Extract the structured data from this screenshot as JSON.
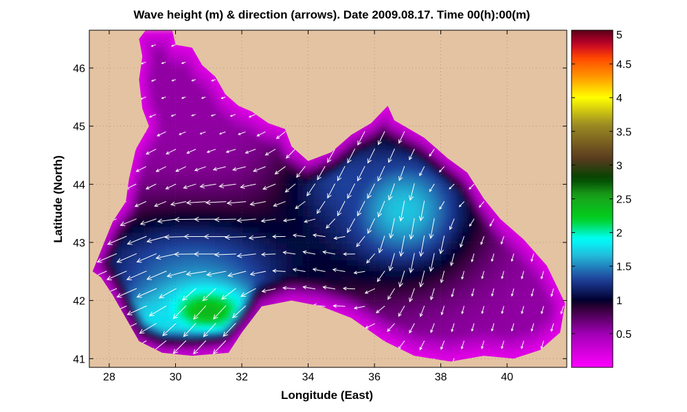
{
  "chart_data": {
    "type": "heatmap",
    "title": "Wave height (m) & direction (arrows). Date 2009.08.17. Time 00(h):00(m)",
    "xlabel": "Longitude (East)",
    "ylabel": "Latitude (North)",
    "xlim": [
      27.4,
      41.8
    ],
    "ylim": [
      40.85,
      46.65
    ],
    "xticks": [
      28,
      30,
      32,
      34,
      36,
      38,
      40
    ],
    "yticks": [
      41,
      42,
      43,
      44,
      45,
      46
    ],
    "grid": true,
    "land_color": "#e4c3a2",
    "colorbar": {
      "range": [
        0,
        5
      ],
      "ticks": [
        0.5,
        1,
        1.5,
        2,
        2.5,
        3,
        3.5,
        4,
        4.5,
        5
      ],
      "stops": [
        {
          "v": 0.0,
          "color": "#ff00ff"
        },
        {
          "v": 0.5,
          "color": "#a000b4"
        },
        {
          "v": 0.9,
          "color": "#2a0030"
        },
        {
          "v": 1.0,
          "color": "#000030"
        },
        {
          "v": 1.3,
          "color": "#1f3f9a"
        },
        {
          "v": 1.65,
          "color": "#23b8d8"
        },
        {
          "v": 1.9,
          "color": "#00ffff"
        },
        {
          "v": 2.2,
          "color": "#00d01e"
        },
        {
          "v": 2.55,
          "color": "#1aa01a"
        },
        {
          "v": 2.8,
          "color": "#004400"
        },
        {
          "v": 3.1,
          "color": "#5a3a1e"
        },
        {
          "v": 3.6,
          "color": "#9c8b23"
        },
        {
          "v": 4.0,
          "color": "#ffff00"
        },
        {
          "v": 4.3,
          "color": "#ff9a00"
        },
        {
          "v": 4.6,
          "color": "#ff4400"
        },
        {
          "v": 4.8,
          "color": "#c0002a"
        },
        {
          "v": 5.0,
          "color": "#5a0018"
        }
      ]
    },
    "sea_outline": [
      [
        29.1,
        46.65
      ],
      [
        29.9,
        46.65
      ],
      [
        30.0,
        46.4
      ],
      [
        30.5,
        46.35
      ],
      [
        30.8,
        46.05
      ],
      [
        31.2,
        45.85
      ],
      [
        31.5,
        45.55
      ],
      [
        31.9,
        45.35
      ],
      [
        32.3,
        45.25
      ],
      [
        32.8,
        45.05
      ],
      [
        33.3,
        44.95
      ],
      [
        33.5,
        44.65
      ],
      [
        34.0,
        44.4
      ],
      [
        34.7,
        44.55
      ],
      [
        35.3,
        44.85
      ],
      [
        35.9,
        45.05
      ],
      [
        36.4,
        45.35
      ],
      [
        36.6,
        45.1
      ],
      [
        37.5,
        44.8
      ],
      [
        38.2,
        44.45
      ],
      [
        38.8,
        44.2
      ],
      [
        39.3,
        43.75
      ],
      [
        39.8,
        43.4
      ],
      [
        40.5,
        43.05
      ],
      [
        41.2,
        42.6
      ],
      [
        41.75,
        41.95
      ],
      [
        41.6,
        41.45
      ],
      [
        41.0,
        41.15
      ],
      [
        40.2,
        41.0
      ],
      [
        39.3,
        41.05
      ],
      [
        38.3,
        40.95
      ],
      [
        37.2,
        41.05
      ],
      [
        36.3,
        41.3
      ],
      [
        35.3,
        41.7
      ],
      [
        34.4,
        41.9
      ],
      [
        33.5,
        42.0
      ],
      [
        32.6,
        41.9
      ],
      [
        32.0,
        41.45
      ],
      [
        31.6,
        41.1
      ],
      [
        30.5,
        41.05
      ],
      [
        29.6,
        41.1
      ],
      [
        28.9,
        41.3
      ],
      [
        28.5,
        41.7
      ],
      [
        28.1,
        42.1
      ],
      [
        27.75,
        42.4
      ],
      [
        27.5,
        42.5
      ],
      [
        27.85,
        43.0
      ],
      [
        28.1,
        43.35
      ],
      [
        28.5,
        43.7
      ],
      [
        28.6,
        44.1
      ],
      [
        28.8,
        44.6
      ],
      [
        29.2,
        45.0
      ],
      [
        29.0,
        45.3
      ],
      [
        28.9,
        45.8
      ],
      [
        29.0,
        46.2
      ],
      [
        28.9,
        46.5
      ]
    ],
    "wave_field": [
      {
        "lon": 30.4,
        "lat": 44.9,
        "height": 0.05,
        "sigma_lon": 1.6,
        "sigma_lat": 1.5
      },
      {
        "lon": 30.5,
        "lat": 42.6,
        "height": 1.4,
        "sigma_lon": 2.8,
        "sigma_lat": 0.7
      },
      {
        "lon": 31.0,
        "lat": 41.8,
        "height": 2.4,
        "sigma_lon": 1.1,
        "sigma_lat": 0.35
      },
      {
        "lon": 29.3,
        "lat": 41.6,
        "height": 1.8,
        "sigma_lon": 1.0,
        "sigma_lat": 0.4
      },
      {
        "lon": 36.9,
        "lat": 43.55,
        "height": 1.7,
        "sigma_lon": 1.5,
        "sigma_lat": 0.8
      },
      {
        "lon": 35.2,
        "lat": 44.0,
        "height": 1.3,
        "sigma_lon": 1.4,
        "sigma_lat": 0.6
      },
      {
        "lon": 34.5,
        "lat": 42.9,
        "height": 1.0,
        "sigma_lon": 1.4,
        "sigma_lat": 0.5
      },
      {
        "lon": 29.3,
        "lat": 43.9,
        "height": 0.55,
        "sigma_lon": 1.8,
        "sigma_lat": 0.9
      },
      {
        "lon": 40.0,
        "lat": 42.0,
        "height": 0.5,
        "sigma_lon": 1.6,
        "sigma_lat": 0.9
      }
    ],
    "arrow_field": {
      "grid_step_lon": 0.6,
      "grid_step_lat": 0.3,
      "vectors": [
        {
          "lon": 30.5,
          "lat": 45.6,
          "dx": -0.15,
          "dy": -0.05
        },
        {
          "lon": 29.5,
          "lat": 44.3,
          "dx": -0.4,
          "dy": -0.2
        },
        {
          "lon": 31.0,
          "lat": 43.0,
          "dx": -0.9,
          "dy": 0.0
        },
        {
          "lon": 29.0,
          "lat": 42.5,
          "dx": -0.8,
          "dy": -0.35
        },
        {
          "lon": 31.0,
          "lat": 41.8,
          "dx": -0.5,
          "dy": -0.55
        },
        {
          "lon": 34.5,
          "lat": 42.7,
          "dx": -0.5,
          "dy": 0.1
        },
        {
          "lon": 35.5,
          "lat": 43.8,
          "dx": -0.3,
          "dy": -0.6
        },
        {
          "lon": 37.3,
          "lat": 43.4,
          "dx": -0.15,
          "dy": -0.85
        },
        {
          "lon": 39.5,
          "lat": 42.3,
          "dx": -0.08,
          "dy": -0.3
        },
        {
          "lon": 38.5,
          "lat": 44.0,
          "dx": -0.2,
          "dy": -0.2
        }
      ]
    }
  }
}
